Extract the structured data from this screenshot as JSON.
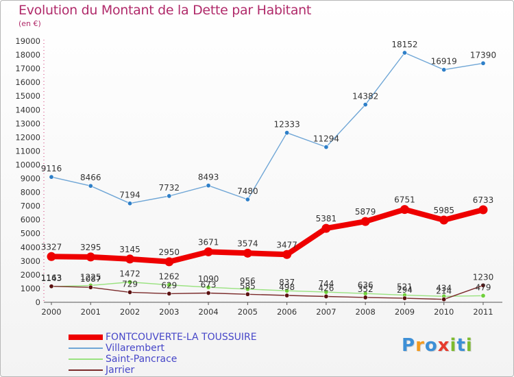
{
  "header": {
    "title": "Evolution du Montant de la Dette par Habitant",
    "subtitle": "(en €)"
  },
  "brand": {
    "text": "Proxiti",
    "letter_colors": [
      "#3d8fd6",
      "#f39a1e",
      "#3d8fd6",
      "#e63b2e",
      "#7dbb2f",
      "#3d8fd6",
      "#7dbb2f"
    ]
  },
  "chart_data": {
    "type": "line",
    "title": "Evolution du Montant de la Dette par Habitant",
    "subtitle": "(en €)",
    "xlabel": "",
    "ylabel": "",
    "ylim": [
      0,
      19000
    ],
    "yticks": [
      0,
      1000,
      2000,
      3000,
      4000,
      5000,
      6000,
      7000,
      8000,
      9000,
      10000,
      11000,
      12000,
      13000,
      14000,
      15000,
      16000,
      17000,
      18000,
      19000
    ],
    "categories": [
      "2000",
      "2001",
      "2002",
      "2003",
      "2004",
      "2005",
      "2006",
      "2007",
      "2008",
      "2009",
      "2010",
      "2011"
    ],
    "grid": false,
    "legend_position": "bottom-left",
    "series": [
      {
        "name": "FONTCOUVERTE-LA TOUSSUIRE",
        "color": "#ee0000",
        "marker_color": "#ee0000",
        "emphasis": "thick",
        "values": [
          3327,
          3295,
          3145,
          2950,
          3671,
          3574,
          3477,
          5381,
          5879,
          6751,
          5985,
          6733
        ],
        "labels": [
          "3327",
          "3295",
          "3145",
          "2950",
          "3671",
          "3574",
          "3477",
          "5381",
          "5879",
          "6751",
          "5985",
          "6733"
        ]
      },
      {
        "name": "Villarembert",
        "color": "#6fa6d6",
        "marker_color": "#2e7fc8",
        "emphasis": "thin",
        "values": [
          9116,
          8466,
          7194,
          7732,
          8493,
          7480,
          12333,
          11294,
          14382,
          18152,
          16919,
          17390
        ],
        "labels": [
          "9116",
          "8466",
          "7194",
          "7732",
          "8493",
          "7480",
          "12333",
          "11294",
          "14382",
          "18152",
          "16919",
          "17390"
        ]
      },
      {
        "name": "Saint-Pancrace",
        "color": "#99e27f",
        "marker_color": "#6fcf3b",
        "emphasis": "thin",
        "values": [
          1143,
          1225,
          1472,
          1262,
          1090,
          956,
          837,
          744,
          636,
          521,
          434,
          479
        ],
        "labels": [
          "1143",
          "1225",
          "1472",
          "1262",
          "1090",
          "956",
          "837",
          "744",
          "636",
          "521",
          "434",
          ""
        ]
      },
      {
        "name": "Jarrier",
        "color": "#7a2a2a",
        "marker_color": "#5a1010",
        "emphasis": "thin",
        "values": [
          1163,
          1087,
          729,
          629,
          673,
          585,
          498,
          426,
          352,
          294,
          214,
          1230
        ],
        "labels": [
          "1163",
          "1087",
          "729",
          "629",
          "673",
          "585",
          "498",
          "426",
          "352",
          "294",
          "214",
          "1230"
        ]
      }
    ],
    "extra_labels": [
      {
        "series": "Saint-Pancrace",
        "category": "2011",
        "text": "479"
      }
    ]
  }
}
